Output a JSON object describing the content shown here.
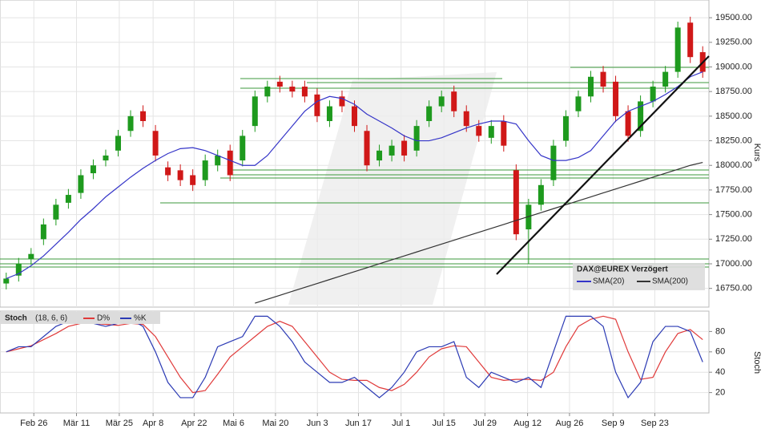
{
  "chart_data": [
    {
      "type": "candlestick",
      "title": "DAX@EUREX Verzögert",
      "y_label": "Kurs",
      "up_color": "#1e9a1e",
      "down_color": "#d01818",
      "ylim": [
        16560,
        19680
      ],
      "yticks": [
        {
          "value": 16750,
          "label": "16750.00"
        },
        {
          "value": 17000,
          "label": "17000.00"
        },
        {
          "value": 17250,
          "label": "17250.00"
        },
        {
          "value": 17500,
          "label": "17500.00"
        },
        {
          "value": 17750,
          "label": "17750.00"
        },
        {
          "value": 18000,
          "label": "18000.00"
        },
        {
          "value": 18250,
          "label": "18250.00"
        },
        {
          "value": 18500,
          "label": "18500.00"
        },
        {
          "value": 18750,
          "label": "18750.00"
        },
        {
          "value": 19000,
          "label": "19000.00"
        },
        {
          "value": 19250,
          "label": "19250.00"
        },
        {
          "value": 19500,
          "label": "19500.00"
        }
      ],
      "grid": true,
      "open": [
        16800,
        16880,
        17050,
        17250,
        17450,
        17620,
        17720,
        17920,
        18050,
        18150,
        18350,
        18550,
        18350,
        17980,
        17950,
        17900,
        17850,
        18000,
        18150,
        18050,
        18400,
        18700,
        18850,
        18800,
        18800,
        18720,
        18450,
        18700,
        18600,
        18350,
        18050,
        18100,
        18250,
        18150,
        18450,
        18600,
        18750,
        18550,
        18400,
        18280,
        18450,
        17950,
        17350,
        17600,
        17850,
        18250,
        18550,
        18700,
        18950,
        18850,
        18550,
        18350,
        18650,
        18800,
        18950,
        19450,
        19150
      ],
      "high": [
        16910,
        17060,
        17160,
        17460,
        17660,
        17760,
        17960,
        18060,
        18160,
        18360,
        18560,
        18610,
        18410,
        18040,
        18010,
        17960,
        18110,
        18160,
        18210,
        18360,
        18760,
        18860,
        18910,
        18860,
        18860,
        18780,
        18660,
        18760,
        18660,
        18410,
        18210,
        18260,
        18310,
        18460,
        18660,
        18760,
        18810,
        18610,
        18460,
        18460,
        18510,
        18010,
        17660,
        17860,
        18260,
        18560,
        18760,
        18960,
        19010,
        18910,
        18610,
        18710,
        18860,
        19010,
        19460,
        19510,
        19210
      ],
      "low": [
        16740,
        16820,
        16990,
        17190,
        17390,
        17560,
        17660,
        17860,
        17990,
        18090,
        18290,
        18390,
        18040,
        17840,
        17790,
        17740,
        17790,
        17940,
        17840,
        17990,
        18340,
        18640,
        18740,
        18690,
        18640,
        18440,
        18390,
        18540,
        18340,
        17940,
        17990,
        18040,
        18040,
        18090,
        18390,
        18540,
        18490,
        18340,
        18240,
        18220,
        18140,
        17240,
        17000,
        17540,
        17790,
        18190,
        18490,
        18640,
        18740,
        18440,
        18240,
        18290,
        18590,
        18740,
        18890,
        19040,
        18890
      ],
      "close": [
        16850,
        17000,
        17100,
        17400,
        17600,
        17700,
        17900,
        18000,
        18100,
        18300,
        18500,
        18450,
        18100,
        17900,
        17850,
        17800,
        18050,
        18100,
        17900,
        18300,
        18700,
        18800,
        18800,
        18750,
        18700,
        18500,
        18600,
        18600,
        18400,
        18000,
        18150,
        18200,
        18100,
        18400,
        18600,
        18700,
        18550,
        18400,
        18300,
        18400,
        18200,
        17300,
        17600,
        17800,
        18200,
        18500,
        18700,
        18900,
        18800,
        18500,
        18300,
        18650,
        18800,
        18950,
        19400,
        19100,
        18950
      ],
      "series": [
        {
          "name": "SMA(20)",
          "color": "#3535c8",
          "values": [
            16850,
            16900,
            16980,
            17080,
            17200,
            17320,
            17450,
            17560,
            17680,
            17780,
            17880,
            17970,
            18050,
            18120,
            18170,
            18180,
            18150,
            18100,
            18050,
            18000,
            18000,
            18100,
            18250,
            18400,
            18550,
            18650,
            18700,
            18680,
            18620,
            18520,
            18450,
            18380,
            18300,
            18250,
            18250,
            18280,
            18330,
            18380,
            18420,
            18450,
            18450,
            18420,
            18250,
            18100,
            18050,
            18050,
            18080,
            18150,
            18300,
            18450,
            18550,
            18600,
            18650,
            18720,
            18800,
            18900,
            18950
          ]
        },
        {
          "name": "SMA(200)",
          "color": "#333333",
          "values": [
            null,
            null,
            null,
            null,
            null,
            null,
            null,
            null,
            null,
            null,
            null,
            null,
            null,
            null,
            null,
            null,
            null,
            null,
            null,
            null,
            16600,
            16640,
            16680,
            16720,
            16760,
            16800,
            16840,
            16880,
            16920,
            16960,
            17000,
            17040,
            17080,
            17120,
            17160,
            17200,
            17240,
            17280,
            17320,
            17360,
            17400,
            17440,
            17480,
            17520,
            17560,
            17600,
            17640,
            17680,
            17720,
            17760,
            17800,
            17840,
            17880,
            17920,
            17960,
            18000,
            18030
          ]
        }
      ]
    },
    {
      "type": "line",
      "title": "Stoch",
      "subtitle": "(18, 6, 6)",
      "y_label": "Stoch",
      "ylim": [
        0,
        100
      ],
      "yticks": [
        20,
        40,
        60,
        80
      ],
      "grid": true,
      "xticks": [
        {
          "value": 2.22,
          "label": "Feb 26"
        },
        {
          "value": 5.65,
          "label": "Mär 11"
        },
        {
          "value": 9.09,
          "label": "Mär 25"
        },
        {
          "value": 11.81,
          "label": "Apr 8"
        },
        {
          "value": 15.11,
          "label": "Apr 22"
        },
        {
          "value": 18.28,
          "label": "Mai 6"
        },
        {
          "value": 21.65,
          "label": "Mai 20"
        },
        {
          "value": 25.02,
          "label": "Jun 3"
        },
        {
          "value": 28.32,
          "label": "Jun 17"
        },
        {
          "value": 31.75,
          "label": "Jul 1"
        },
        {
          "value": 35.19,
          "label": "Jul 15"
        },
        {
          "value": 38.49,
          "label": "Jul 29"
        },
        {
          "value": 41.92,
          "label": "Aug 12"
        },
        {
          "value": 45.29,
          "label": "Aug 26"
        },
        {
          "value": 48.79,
          "label": "Sep 9"
        },
        {
          "value": 52.15,
          "label": "Sep 23"
        }
      ],
      "series": [
        {
          "name": "D%",
          "color": "#e03a3a",
          "values": [
            60,
            63,
            66,
            72,
            78,
            85,
            88,
            88,
            87,
            86,
            88,
            87,
            75,
            55,
            35,
            20,
            22,
            38,
            55,
            65,
            75,
            85,
            90,
            85,
            70,
            55,
            40,
            33,
            32,
            32,
            25,
            22,
            28,
            40,
            55,
            63,
            66,
            65,
            50,
            35,
            32,
            33,
            33,
            32,
            40,
            65,
            85,
            92,
            95,
            92,
            60,
            33,
            35,
            60,
            78,
            82,
            72
          ]
        },
        {
          "name": "%K",
          "color": "#2b3ab4",
          "values": [
            60,
            65,
            65,
            75,
            85,
            90,
            88,
            88,
            85,
            88,
            92,
            85,
            60,
            30,
            15,
            15,
            35,
            65,
            70,
            75,
            95,
            95,
            85,
            70,
            50,
            40,
            30,
            30,
            35,
            25,
            15,
            25,
            40,
            60,
            65,
            65,
            70,
            35,
            25,
            40,
            35,
            30,
            35,
            25,
            60,
            95,
            95,
            95,
            85,
            40,
            15,
            30,
            70,
            85,
            85,
            80,
            50
          ]
        }
      ]
    }
  ]
}
